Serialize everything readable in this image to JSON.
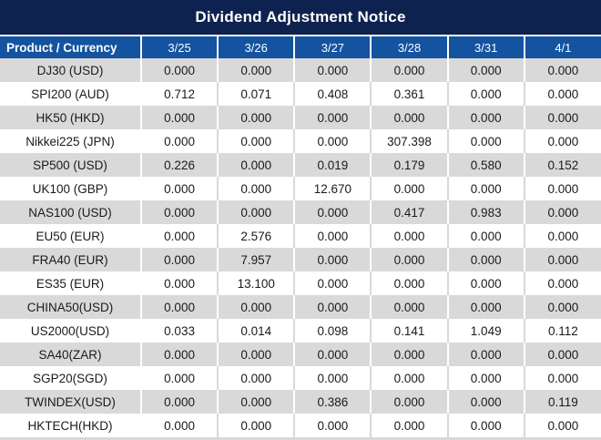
{
  "title": "Dividend Adjustment Notice",
  "colors": {
    "title_bar_bg": "#0e2250",
    "header_bg": "#1353a0",
    "header_text": "#ffffff",
    "row_alt_bg": "#d9d9d9",
    "row_bg": "#ffffff",
    "value_text": "#1a1a1a",
    "nonzero_highlight": "#ff0000"
  },
  "chart_data": {
    "type": "table",
    "title": "Dividend Adjustment Notice",
    "columns": [
      "Product / Currency",
      "3/25",
      "3/26",
      "3/27",
      "3/28",
      "3/31",
      "4/1"
    ],
    "highlight_rule": "non-zero values shown in red",
    "rows": [
      {
        "product": "DJ30 (USD)",
        "values": [
          "0.000",
          "0.000",
          "0.000",
          "0.000",
          "0.000",
          "0.000"
        ]
      },
      {
        "product": "SPI200 (AUD)",
        "values": [
          "0.712",
          "0.071",
          "0.408",
          "0.361",
          "0.000",
          "0.000"
        ]
      },
      {
        "product": "HK50 (HKD)",
        "values": [
          "0.000",
          "0.000",
          "0.000",
          "0.000",
          "0.000",
          "0.000"
        ]
      },
      {
        "product": "Nikkei225 (JPN)",
        "values": [
          "0.000",
          "0.000",
          "0.000",
          "307.398",
          "0.000",
          "0.000"
        ]
      },
      {
        "product": "SP500 (USD)",
        "values": [
          "0.226",
          "0.000",
          "0.019",
          "0.179",
          "0.580",
          "0.152"
        ]
      },
      {
        "product": "UK100 (GBP)",
        "values": [
          "0.000",
          "0.000",
          "12.670",
          "0.000",
          "0.000",
          "0.000"
        ]
      },
      {
        "product": "NAS100 (USD)",
        "values": [
          "0.000",
          "0.000",
          "0.000",
          "0.417",
          "0.983",
          "0.000"
        ]
      },
      {
        "product": "EU50 (EUR)",
        "values": [
          "0.000",
          "2.576",
          "0.000",
          "0.000",
          "0.000",
          "0.000"
        ]
      },
      {
        "product": "FRA40 (EUR)",
        "values": [
          "0.000",
          "7.957",
          "0.000",
          "0.000",
          "0.000",
          "0.000"
        ]
      },
      {
        "product": "ES35 (EUR)",
        "values": [
          "0.000",
          "13.100",
          "0.000",
          "0.000",
          "0.000",
          "0.000"
        ]
      },
      {
        "product": "CHINA50(USD)",
        "values": [
          "0.000",
          "0.000",
          "0.000",
          "0.000",
          "0.000",
          "0.000"
        ]
      },
      {
        "product": "US2000(USD)",
        "values": [
          "0.033",
          "0.014",
          "0.098",
          "0.141",
          "1.049",
          "0.112"
        ]
      },
      {
        "product": "SA40(ZAR)",
        "values": [
          "0.000",
          "0.000",
          "0.000",
          "0.000",
          "0.000",
          "0.000"
        ]
      },
      {
        "product": "SGP20(SGD)",
        "values": [
          "0.000",
          "0.000",
          "0.000",
          "0.000",
          "0.000",
          "0.000"
        ]
      },
      {
        "product": "TWINDEX(USD)",
        "values": [
          "0.000",
          "0.000",
          "0.386",
          "0.000",
          "0.000",
          "0.119"
        ]
      },
      {
        "product": "HKTECH(HKD)",
        "values": [
          "0.000",
          "0.000",
          "0.000",
          "0.000",
          "0.000",
          "0.000"
        ]
      }
    ]
  }
}
